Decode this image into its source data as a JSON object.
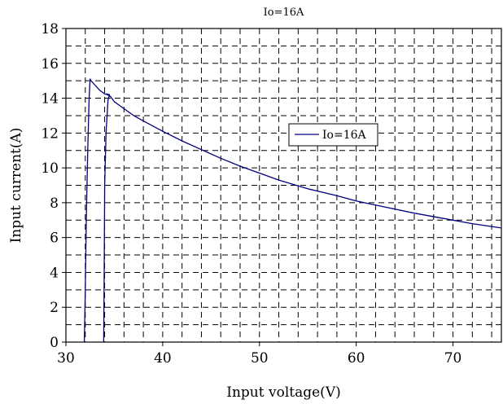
{
  "chart_data": {
    "type": "line",
    "title": "Io=16A",
    "xlabel": "Input voltage(V)",
    "ylabel": "Input current(A)",
    "xlim": [
      30,
      75
    ],
    "ylim": [
      0,
      18
    ],
    "xticks": [
      30,
      40,
      50,
      60,
      70
    ],
    "yticks": [
      0,
      2,
      4,
      6,
      8,
      10,
      12,
      14,
      16,
      18
    ],
    "grid": "dashed",
    "legend_position": "center-right",
    "series": [
      {
        "name": "Io=16A",
        "color": "#000080",
        "x": [
          33.9,
          33.95,
          34.0,
          34.15,
          34.35,
          34.5,
          34.2,
          34.3,
          34.6,
          35,
          36,
          37,
          38,
          39,
          40,
          42,
          44,
          46,
          48,
          50,
          52,
          55,
          58,
          60,
          63,
          66,
          70,
          72,
          75
        ],
        "y": [
          0,
          4,
          9,
          12,
          13.9,
          14.2,
          14.25,
          14.2,
          14.1,
          13.8,
          13.4,
          13.0,
          12.7,
          12.4,
          12.1,
          11.55,
          11.05,
          10.55,
          10.1,
          9.7,
          9.3,
          8.8,
          8.4,
          8.1,
          7.75,
          7.4,
          7.0,
          6.8,
          6.55
        ]
      },
      {
        "name": "",
        "color": "#000080",
        "x": [
          31.9,
          32.0,
          32.1,
          32.25,
          32.4,
          32.5,
          32.6,
          33.0,
          33.5,
          34.0,
          34.3
        ],
        "y": [
          0,
          3,
          7,
          11,
          14,
          15.1,
          15.0,
          14.75,
          14.45,
          14.25,
          14.2
        ]
      }
    ]
  }
}
